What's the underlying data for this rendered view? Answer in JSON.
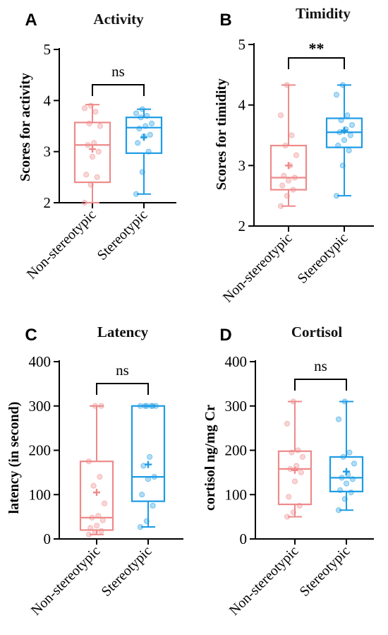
{
  "colors": {
    "non_stereotypic": "#ee8a8a",
    "stereotypic": "#1c9be6",
    "axis": "#000000"
  },
  "chart_data": [
    {
      "panel": "A",
      "type": "box",
      "title": "Activity",
      "ylabel": "Scores for activity",
      "categories": [
        "Non-stereotypic",
        "Stereotypic"
      ],
      "ylim": [
        2,
        5
      ],
      "yticks": [
        2,
        3,
        4,
        5
      ],
      "significance": "ns",
      "series": [
        {
          "min": 2.0,
          "q1": 2.4,
          "median": 3.13,
          "q3": 3.57,
          "max": 3.92,
          "mean": 3.05,
          "points": [
            2.0,
            2.35,
            2.5,
            2.55,
            2.9,
            3.0,
            3.13,
            3.17,
            3.5,
            3.55,
            3.78,
            3.85,
            3.9
          ]
        },
        {
          "min": 2.17,
          "q1": 2.97,
          "median": 3.47,
          "q3": 3.67,
          "max": 3.83,
          "mean": 3.28,
          "points": [
            2.17,
            2.6,
            3.0,
            3.17,
            3.3,
            3.33,
            3.45,
            3.5,
            3.55,
            3.67,
            3.7,
            3.75,
            3.83
          ]
        }
      ]
    },
    {
      "panel": "B",
      "type": "box",
      "title": "Timidity",
      "ylabel": "Scores for timidity",
      "categories": [
        "Non-stereotypic",
        "Stereotypic"
      ],
      "ylim": [
        2,
        5
      ],
      "yticks": [
        2,
        3,
        4,
        5
      ],
      "significance": "**",
      "series": [
        {
          "min": 2.33,
          "q1": 2.6,
          "median": 2.8,
          "q3": 3.33,
          "max": 4.33,
          "mean": 3.0,
          "points": [
            2.33,
            2.5,
            2.6,
            2.67,
            2.75,
            2.8,
            2.83,
            3.0,
            3.17,
            3.33,
            3.5,
            3.83,
            4.33
          ]
        },
        {
          "min": 2.5,
          "q1": 3.3,
          "median": 3.55,
          "q3": 3.78,
          "max": 4.33,
          "mean": 3.58,
          "points": [
            2.5,
            3.0,
            3.25,
            3.33,
            3.42,
            3.5,
            3.55,
            3.6,
            3.67,
            3.75,
            3.83,
            4.17,
            4.33
          ]
        }
      ]
    },
    {
      "panel": "C",
      "type": "box",
      "title": "Latency",
      "ylabel": "latency (in second)",
      "categories": [
        "Non-stereotypic",
        "Stereotypic"
      ],
      "ylim": [
        0,
        400
      ],
      "yticks": [
        0,
        100,
        200,
        300,
        400
      ],
      "significance": "ns",
      "series": [
        {
          "min": 10,
          "q1": 20,
          "median": 48,
          "q3": 175,
          "max": 300,
          "mean": 105,
          "points": [
            10,
            15,
            18,
            25,
            30,
            42,
            48,
            52,
            80,
            120,
            140,
            175,
            300,
            300
          ]
        },
        {
          "min": 27,
          "q1": 85,
          "median": 140,
          "q3": 300,
          "max": 300,
          "mean": 168,
          "points": [
            27,
            40,
            75,
            100,
            135,
            140,
            165,
            185,
            300,
            300,
            300,
            300,
            300,
            300
          ]
        }
      ]
    },
    {
      "panel": "D",
      "type": "box",
      "title": "Cortisol",
      "ylabel": "cortisol  ng/mg Cr",
      "categories": [
        "Non-stereotypic",
        "Stereotypic"
      ],
      "ylim": [
        0,
        400
      ],
      "yticks": [
        0,
        100,
        200,
        300,
        400
      ],
      "significance": "ns",
      "series": [
        {
          "min": 50,
          "q1": 78,
          "median": 158,
          "q3": 198,
          "max": 310,
          "mean": 155,
          "points": [
            50,
            60,
            75,
            95,
            130,
            150,
            158,
            165,
            185,
            195,
            200,
            260,
            310
          ]
        },
        {
          "min": 65,
          "q1": 107,
          "median": 138,
          "q3": 185,
          "max": 310,
          "mean": 152,
          "points": [
            65,
            90,
            105,
            110,
            125,
            135,
            138,
            145,
            170,
            185,
            195,
            270,
            310
          ]
        }
      ]
    }
  ]
}
